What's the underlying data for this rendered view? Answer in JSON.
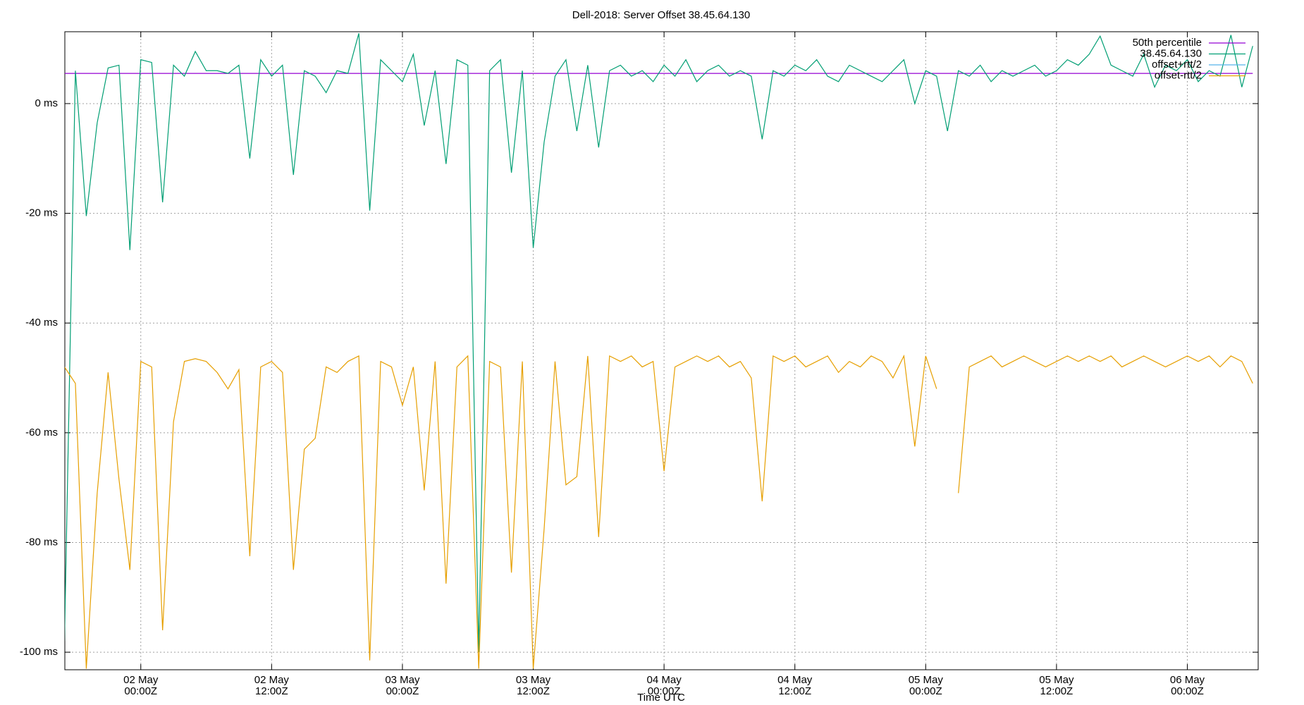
{
  "chart_data": {
    "type": "line",
    "title": "Dell-2018: Server Offset 38.45.64.130",
    "xlabel": "Time UTC",
    "x": [
      "01 May 17:00Z",
      "01 May 18:00Z",
      "01 May 19:00Z",
      "01 May 20:00Z",
      "01 May 21:00Z",
      "01 May 22:00Z",
      "01 May 23:00Z",
      "02 May 00:00Z",
      "02 May 01:00Z",
      "02 May 02:00Z",
      "02 May 03:00Z",
      "02 May 04:00Z",
      "02 May 05:00Z",
      "02 May 06:00Z",
      "02 May 07:00Z",
      "02 May 08:00Z",
      "02 May 09:00Z",
      "02 May 10:00Z",
      "02 May 11:00Z",
      "02 May 12:00Z",
      "02 May 13:00Z",
      "02 May 14:00Z",
      "02 May 15:00Z",
      "02 May 16:00Z",
      "02 May 17:00Z",
      "02 May 18:00Z",
      "02 May 19:00Z",
      "02 May 20:00Z",
      "02 May 21:00Z",
      "02 May 22:00Z",
      "02 May 23:00Z",
      "03 May 00:00Z",
      "03 May 01:00Z",
      "03 May 02:00Z",
      "03 May 03:00Z",
      "03 May 04:00Z",
      "03 May 05:00Z",
      "03 May 06:00Z",
      "03 May 07:00Z",
      "03 May 08:00Z",
      "03 May 09:00Z",
      "03 May 10:00Z",
      "03 May 11:00Z",
      "03 May 12:00Z",
      "03 May 13:00Z",
      "03 May 14:00Z",
      "03 May 15:00Z",
      "03 May 16:00Z",
      "03 May 17:00Z",
      "03 May 18:00Z",
      "03 May 19:00Z",
      "03 May 20:00Z",
      "03 May 21:00Z",
      "03 May 22:00Z",
      "03 May 23:00Z",
      "04 May 00:00Z",
      "04 May 01:00Z",
      "04 May 02:00Z",
      "04 May 03:00Z",
      "04 May 04:00Z",
      "04 May 05:00Z",
      "04 May 06:00Z",
      "04 May 07:00Z",
      "04 May 08:00Z",
      "04 May 09:00Z",
      "04 May 10:00Z",
      "04 May 11:00Z",
      "04 May 12:00Z",
      "04 May 13:00Z",
      "04 May 14:00Z",
      "04 May 15:00Z",
      "04 May 16:00Z",
      "04 May 17:00Z",
      "04 May 18:00Z",
      "04 May 19:00Z",
      "04 May 20:00Z",
      "04 May 21:00Z",
      "04 May 22:00Z",
      "04 May 23:00Z",
      "05 May 00:00Z",
      "05 May 01:00Z",
      "05 May 02:00Z",
      "05 May 03:00Z",
      "05 May 04:00Z",
      "05 May 05:00Z",
      "05 May 06:00Z",
      "05 May 07:00Z",
      "05 May 08:00Z",
      "05 May 09:00Z",
      "05 May 10:00Z",
      "05 May 11:00Z",
      "05 May 12:00Z",
      "05 May 13:00Z",
      "05 May 14:00Z",
      "05 May 15:00Z",
      "05 May 16:00Z",
      "05 May 17:00Z",
      "05 May 18:00Z",
      "05 May 19:00Z",
      "05 May 20:00Z",
      "05 May 21:00Z",
      "05 May 22:00Z",
      "05 May 23:00Z",
      "06 May 00:00Z",
      "06 May 01:00Z",
      "06 May 02:00Z",
      "06 May 03:00Z",
      "06 May 04:00Z",
      "06 May 05:00Z",
      "06 May 06:00Z"
    ],
    "series": [
      {
        "name": "50th percentile",
        "color": "#9400d3",
        "values": [
          5.5,
          5.5,
          5.5,
          5.5,
          5.5,
          5.5,
          5.5,
          5.5,
          5.5,
          5.5,
          5.5,
          5.5,
          5.5,
          5.5,
          5.5,
          5.5,
          5.5,
          5.5,
          5.5,
          5.5,
          5.5,
          5.5,
          5.5,
          5.5,
          5.5,
          5.5,
          5.5,
          5.5,
          5.5,
          5.5,
          5.5,
          5.5,
          5.5,
          5.5,
          5.5,
          5.5,
          5.5,
          5.5,
          5.5,
          5.5,
          5.5,
          5.5,
          5.5,
          5.5,
          5.5,
          5.5,
          5.5,
          5.5,
          5.5,
          5.5,
          5.5,
          5.5,
          5.5,
          5.5,
          5.5,
          5.5,
          5.5,
          5.5,
          5.5,
          5.5,
          5.5,
          5.5,
          5.5,
          5.5,
          5.5,
          5.5,
          5.5,
          5.5,
          5.5,
          5.5,
          5.5,
          5.5,
          5.5,
          5.5,
          5.5,
          5.5,
          5.5,
          5.5,
          5.5,
          5.5,
          5.5,
          5.5,
          5.5,
          5.5,
          5.5,
          5.5,
          5.5,
          5.5,
          5.5,
          5.5,
          5.5,
          5.5,
          5.5,
          5.5,
          5.5,
          5.5,
          5.5,
          5.5,
          5.5,
          5.5,
          5.5,
          5.5,
          5.5,
          5.5,
          5.5,
          5.5,
          5.5,
          5.5,
          5.5,
          5.5
        ]
      },
      {
        "name": "38.45.64.130",
        "color": "#009e73",
        "values": [
          -98,
          6,
          -20.5,
          -3.5,
          6.5,
          7,
          -26.7,
          8,
          7.5,
          -18,
          7,
          5,
          9.5,
          6,
          6,
          5.5,
          7,
          -10,
          8,
          5,
          7,
          -13,
          6,
          5,
          2,
          6,
          5.5,
          12.8,
          -19.5,
          8,
          6,
          4,
          9,
          -4,
          6,
          -11,
          8,
          7,
          -100,
          6,
          8,
          -12.6,
          6,
          -26.3,
          -7,
          5,
          8,
          -5,
          7,
          -8,
          6,
          7,
          5,
          6,
          4,
          7,
          5,
          8,
          4,
          6,
          7,
          5,
          6,
          5,
          -6.5,
          6,
          5,
          7,
          6,
          8,
          5,
          4,
          7,
          6,
          5,
          4,
          6,
          8,
          0,
          6,
          5,
          -5,
          6,
          5,
          7,
          4,
          6,
          5,
          6,
          7,
          5,
          6,
          8,
          7,
          9,
          12.3,
          7,
          6,
          5,
          9,
          3,
          7,
          6,
          8,
          4,
          6,
          5,
          12.5,
          3,
          10.5
        ]
      },
      {
        "name": "offset+rtt/2",
        "color": "#56b4e9"
      },
      {
        "name": "offset-rtt/2",
        "color": "#e69f00",
        "values": [
          -48,
          -51,
          -103,
          -71,
          -49,
          -68.5,
          -85,
          -47,
          -48,
          -96,
          -58,
          -47,
          -46.5,
          -47,
          -49,
          -52,
          -48.5,
          -82.5,
          -48,
          -47,
          -49,
          -85,
          -63,
          -61,
          -48,
          -49,
          -47,
          -46,
          -101.5,
          -47,
          -48,
          -55,
          -48,
          -70.5,
          -47,
          -87.5,
          -48,
          -46,
          -103,
          -47,
          -48,
          -85.5,
          -47,
          -103,
          -77.5,
          -47,
          -69.5,
          -68,
          -46,
          -79,
          -46,
          -47,
          -46,
          -48,
          -47,
          -67,
          -48,
          -47,
          -46,
          -47,
          -46,
          -48,
          -47,
          -50,
          -72.5,
          -46,
          -47,
          -46,
          -48,
          -47,
          -46,
          -49,
          -47,
          -48,
          -46,
          -47,
          -50,
          -46,
          -62.5,
          -46,
          -52,
          null,
          -71,
          -48,
          -47,
          -46,
          -48,
          -47,
          -46,
          -47,
          -48,
          -47,
          -46,
          -47,
          -46,
          -47,
          -46,
          -48,
          -47,
          -46,
          -47,
          -48,
          -47,
          -46,
          -47,
          -46,
          -48,
          -46,
          -47,
          -51
        ]
      }
    ],
    "xlim": [
      "01 May 17:02Z",
      "06 May 06:30Z"
    ],
    "xticks": [
      "02 May 00:00Z",
      "02 May 12:00Z",
      "03 May 00:00Z",
      "03 May 12:00Z",
      "04 May 00:00Z",
      "04 May 12:00Z",
      "05 May 00:00Z",
      "05 May 12:00Z",
      "06 May 00:00Z"
    ],
    "ylim": [
      -103.2,
      13.1
    ],
    "yticks": [
      {
        "value": 0,
        "label": "0 ms"
      },
      {
        "value": -20,
        "label": "-20 ms"
      },
      {
        "value": -40,
        "label": "-40 ms"
      },
      {
        "value": -60,
        "label": "-60 ms"
      },
      {
        "value": -80,
        "label": "-80 ms"
      },
      {
        "value": -100,
        "label": "-100 ms"
      }
    ],
    "grid": true,
    "legend": "top-right"
  }
}
